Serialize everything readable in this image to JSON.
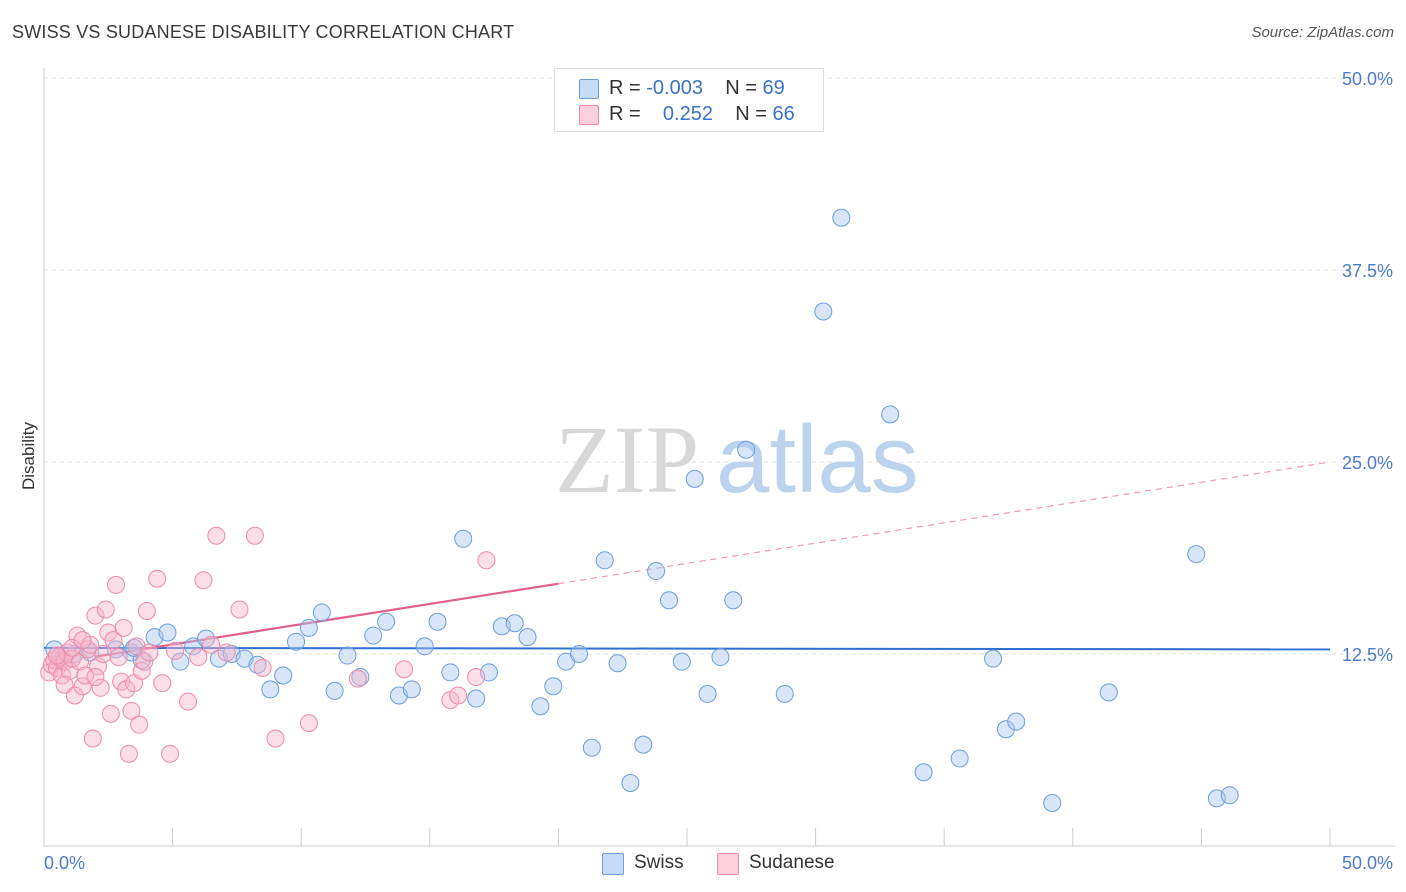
{
  "title": "SWISS VS SUDANESE DISABILITY CORRELATION CHART",
  "source": "Source: ZipAtlas.com",
  "watermark": {
    "zip": "ZIP",
    "atlas": "atlas"
  },
  "legend": {
    "swiss": {
      "r_label": "R = ",
      "r_value": "-0.003",
      "n_label": "N = ",
      "n_value": "69",
      "color": "#a8c8f0",
      "border": "#6a9ee0"
    },
    "sudanese": {
      "r_label": "R = ",
      "r_value": "0.252",
      "n_label": "N = ",
      "n_value": "66",
      "color": "#f7b6c9",
      "border": "#ee8aaa"
    }
  },
  "bottom_legend": {
    "swiss": "Swiss",
    "sudanese": "Sudanese"
  },
  "chart_data": {
    "type": "scatter",
    "title": "SWISS VS SUDANESE DISABILITY CORRELATION CHART",
    "xlabel": "",
    "ylabel": "Disability",
    "xlim": [
      0,
      50
    ],
    "ylim": [
      0,
      50
    ],
    "x_tick_labels": [
      "0.0%",
      "50.0%"
    ],
    "y_ticks": [
      12.5,
      25.0,
      37.5,
      50.0
    ],
    "y_tick_labels": [
      "12.5%",
      "25.0%",
      "37.5%",
      "50.0%"
    ],
    "grid": true,
    "legend_position": "top-center",
    "series": [
      {
        "name": "Swiss",
        "color": "#6a9ee0",
        "points": [
          [
            0.4,
            12.8
          ],
          [
            0.7,
            12.1
          ],
          [
            1.2,
            12.5
          ],
          [
            1.8,
            12.6
          ],
          [
            2.8,
            12.8
          ],
          [
            3.4,
            12.6
          ],
          [
            3.8,
            12.1
          ],
          [
            4.3,
            13.6
          ],
          [
            4.8,
            13.9
          ],
          [
            5.3,
            12.0
          ],
          [
            5.8,
            13.0
          ],
          [
            6.3,
            13.5
          ],
          [
            6.8,
            12.2
          ],
          [
            7.3,
            12.5
          ],
          [
            7.8,
            12.2
          ],
          [
            8.3,
            11.8
          ],
          [
            8.8,
            10.2
          ],
          [
            9.3,
            11.1
          ],
          [
            9.8,
            13.3
          ],
          [
            10.3,
            14.2
          ],
          [
            10.8,
            15.2
          ],
          [
            11.3,
            10.1
          ],
          [
            11.8,
            12.4
          ],
          [
            12.3,
            11.0
          ],
          [
            12.8,
            13.7
          ],
          [
            13.3,
            14.6
          ],
          [
            13.8,
            9.8
          ],
          [
            14.3,
            10.2
          ],
          [
            14.8,
            13.0
          ],
          [
            15.3,
            14.6
          ],
          [
            15.8,
            11.3
          ],
          [
            16.3,
            20.0
          ],
          [
            16.8,
            9.6
          ],
          [
            17.3,
            11.3
          ],
          [
            17.8,
            14.3
          ],
          [
            18.3,
            14.5
          ],
          [
            18.8,
            13.6
          ],
          [
            19.3,
            9.1
          ],
          [
            19.8,
            10.4
          ],
          [
            20.3,
            12.0
          ],
          [
            20.8,
            12.5
          ],
          [
            21.3,
            6.4
          ],
          [
            21.8,
            18.6
          ],
          [
            22.3,
            11.9
          ],
          [
            22.8,
            4.1
          ],
          [
            23.3,
            6.6
          ],
          [
            23.8,
            17.9
          ],
          [
            24.3,
            16.0
          ],
          [
            24.8,
            12.0
          ],
          [
            25.3,
            23.9
          ],
          [
            25.8,
            9.9
          ],
          [
            26.3,
            12.3
          ],
          [
            26.8,
            16.0
          ],
          [
            27.3,
            25.8
          ],
          [
            28.8,
            9.9
          ],
          [
            30.3,
            34.8
          ],
          [
            31.0,
            40.9
          ],
          [
            32.9,
            28.1
          ],
          [
            34.2,
            4.8
          ],
          [
            35.6,
            5.7
          ],
          [
            36.9,
            12.2
          ],
          [
            37.4,
            7.6
          ],
          [
            37.8,
            8.1
          ],
          [
            39.2,
            2.8
          ],
          [
            41.4,
            10.0
          ],
          [
            44.8,
            19.0
          ],
          [
            45.6,
            3.1
          ],
          [
            46.1,
            3.3
          ],
          [
            3.5,
            12.9
          ]
        ]
      },
      {
        "name": "Sudanese",
        "color": "#ee8aaa",
        "points": [
          [
            0.2,
            11.3
          ],
          [
            0.3,
            11.8
          ],
          [
            0.4,
            12.1
          ],
          [
            0.5,
            11.6
          ],
          [
            0.6,
            12.3
          ],
          [
            0.7,
            11.1
          ],
          [
            0.8,
            12.0
          ],
          [
            0.9,
            12.6
          ],
          [
            1.0,
            11.4
          ],
          [
            1.1,
            12.2
          ],
          [
            1.2,
            9.8
          ],
          [
            1.3,
            13.7
          ],
          [
            1.4,
            12.0
          ],
          [
            1.5,
            10.4
          ],
          [
            1.6,
            11.1
          ],
          [
            1.7,
            12.8
          ],
          [
            1.8,
            13.1
          ],
          [
            1.9,
            7.0
          ],
          [
            2.0,
            15.0
          ],
          [
            2.1,
            11.7
          ],
          [
            2.2,
            10.3
          ],
          [
            2.3,
            12.5
          ],
          [
            2.4,
            15.4
          ],
          [
            2.5,
            13.9
          ],
          [
            2.6,
            8.6
          ],
          [
            2.7,
            13.4
          ],
          [
            2.8,
            17.0
          ],
          [
            2.9,
            12.3
          ],
          [
            3.0,
            10.7
          ],
          [
            3.1,
            14.2
          ],
          [
            3.2,
            10.2
          ],
          [
            3.3,
            6.0
          ],
          [
            3.4,
            8.8
          ],
          [
            3.5,
            10.6
          ],
          [
            3.6,
            13.0
          ],
          [
            3.7,
            7.9
          ],
          [
            3.8,
            11.4
          ],
          [
            3.9,
            12.0
          ],
          [
            4.0,
            15.3
          ],
          [
            4.1,
            12.6
          ],
          [
            4.4,
            17.4
          ],
          [
            4.6,
            10.6
          ],
          [
            4.9,
            6.0
          ],
          [
            5.1,
            12.7
          ],
          [
            5.6,
            9.4
          ],
          [
            6.0,
            12.3
          ],
          [
            6.2,
            17.3
          ],
          [
            6.5,
            13.1
          ],
          [
            6.7,
            20.2
          ],
          [
            7.1,
            12.6
          ],
          [
            7.6,
            15.4
          ],
          [
            8.2,
            20.2
          ],
          [
            8.5,
            11.6
          ],
          [
            9.0,
            7.0
          ],
          [
            10.3,
            8.0
          ],
          [
            12.2,
            10.9
          ],
          [
            14.0,
            11.5
          ],
          [
            15.8,
            9.5
          ],
          [
            16.1,
            9.8
          ],
          [
            16.8,
            11.0
          ],
          [
            17.2,
            18.6
          ],
          [
            0.8,
            10.5
          ],
          [
            1.1,
            12.9
          ],
          [
            1.5,
            13.4
          ],
          [
            2.0,
            11.0
          ],
          [
            0.5,
            12.4
          ]
        ]
      }
    ],
    "trend_lines": [
      {
        "series": "Swiss",
        "x": [
          0,
          50
        ],
        "y": [
          12.9,
          12.8
        ]
      },
      {
        "series": "Sudanese",
        "x": [
          0,
          50
        ],
        "y": [
          11.8,
          25.0
        ],
        "solid_until_x": 20
      }
    ]
  }
}
